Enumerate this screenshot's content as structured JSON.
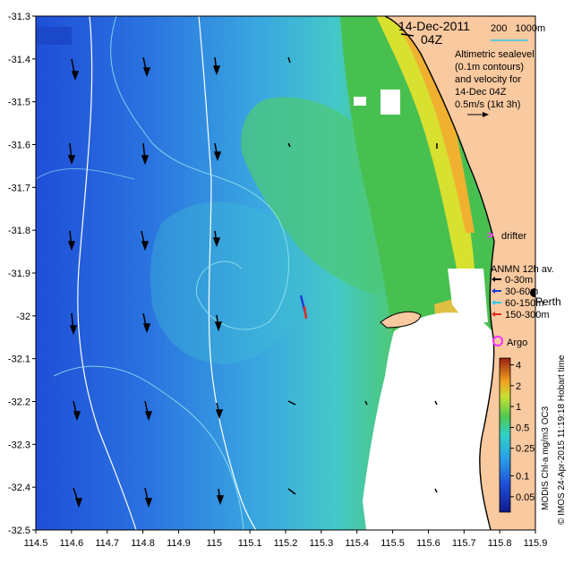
{
  "chart_data": {
    "type": "heatmap",
    "title": "",
    "xlabel": "",
    "ylabel": "",
    "xlim": [
      114.5,
      115.9
    ],
    "ylim": [
      -32.5,
      -31.3
    ],
    "x_ticks": [
      "114.5",
      "114.6",
      "114.7",
      "114.8",
      "114.9",
      "115",
      "115.1",
      "115.2",
      "115.3",
      "115.4",
      "115.5",
      "115.6",
      "115.7",
      "115.8",
      "115.9"
    ],
    "y_ticks": [
      "-31.3",
      "-31.4",
      "-31.5",
      "-31.6",
      "-31.7",
      "-31.8",
      "-31.9",
      "-32",
      "-32.1",
      "-32.2",
      "-32.3",
      "-32.4",
      "-32.5"
    ],
    "colorbar": {
      "label": "MODIS Chl-a mg/m3 OC3",
      "ticks": [
        "4",
        "2",
        "1",
        "0.5",
        "0.25",
        "0.1",
        "0.05"
      ],
      "scale": "log",
      "range": [
        0.03,
        5
      ]
    },
    "colors": {
      "land": "#f9c9a0",
      "low": "#1f4fd8",
      "mid": "#38b8d8",
      "green": "#44c46a",
      "high": "#f6d030",
      "coast": "#000000",
      "isobath": "#ffffff",
      "contour": "#9ee8f0"
    }
  },
  "annotations": {
    "date": "14-Dec-2011",
    "time": "04Z",
    "isobath_legend": "200   1000m",
    "altimetry_lines": [
      "Altimetric sealevel",
      "(0.1m contours)",
      "and velocity for",
      "14-Dec 04Z"
    ],
    "velocity_scale": "0.5m/s (1kt 3h)",
    "drifter": "drifter",
    "anmn_title": "ANMN 12h av.",
    "anmn_depths": [
      "0-30m",
      "30-60m",
      "60-150m",
      "150-300m"
    ],
    "anmn_colors": [
      "#000000",
      "#1f3bd8",
      "#30c8e8",
      "#e03020"
    ],
    "perth": "Perth",
    "argo": "Argo",
    "credit": "© IMOS 24-Apr-2015 11:19:18 Hobart time",
    "drifter_color": "#ff30ff"
  }
}
